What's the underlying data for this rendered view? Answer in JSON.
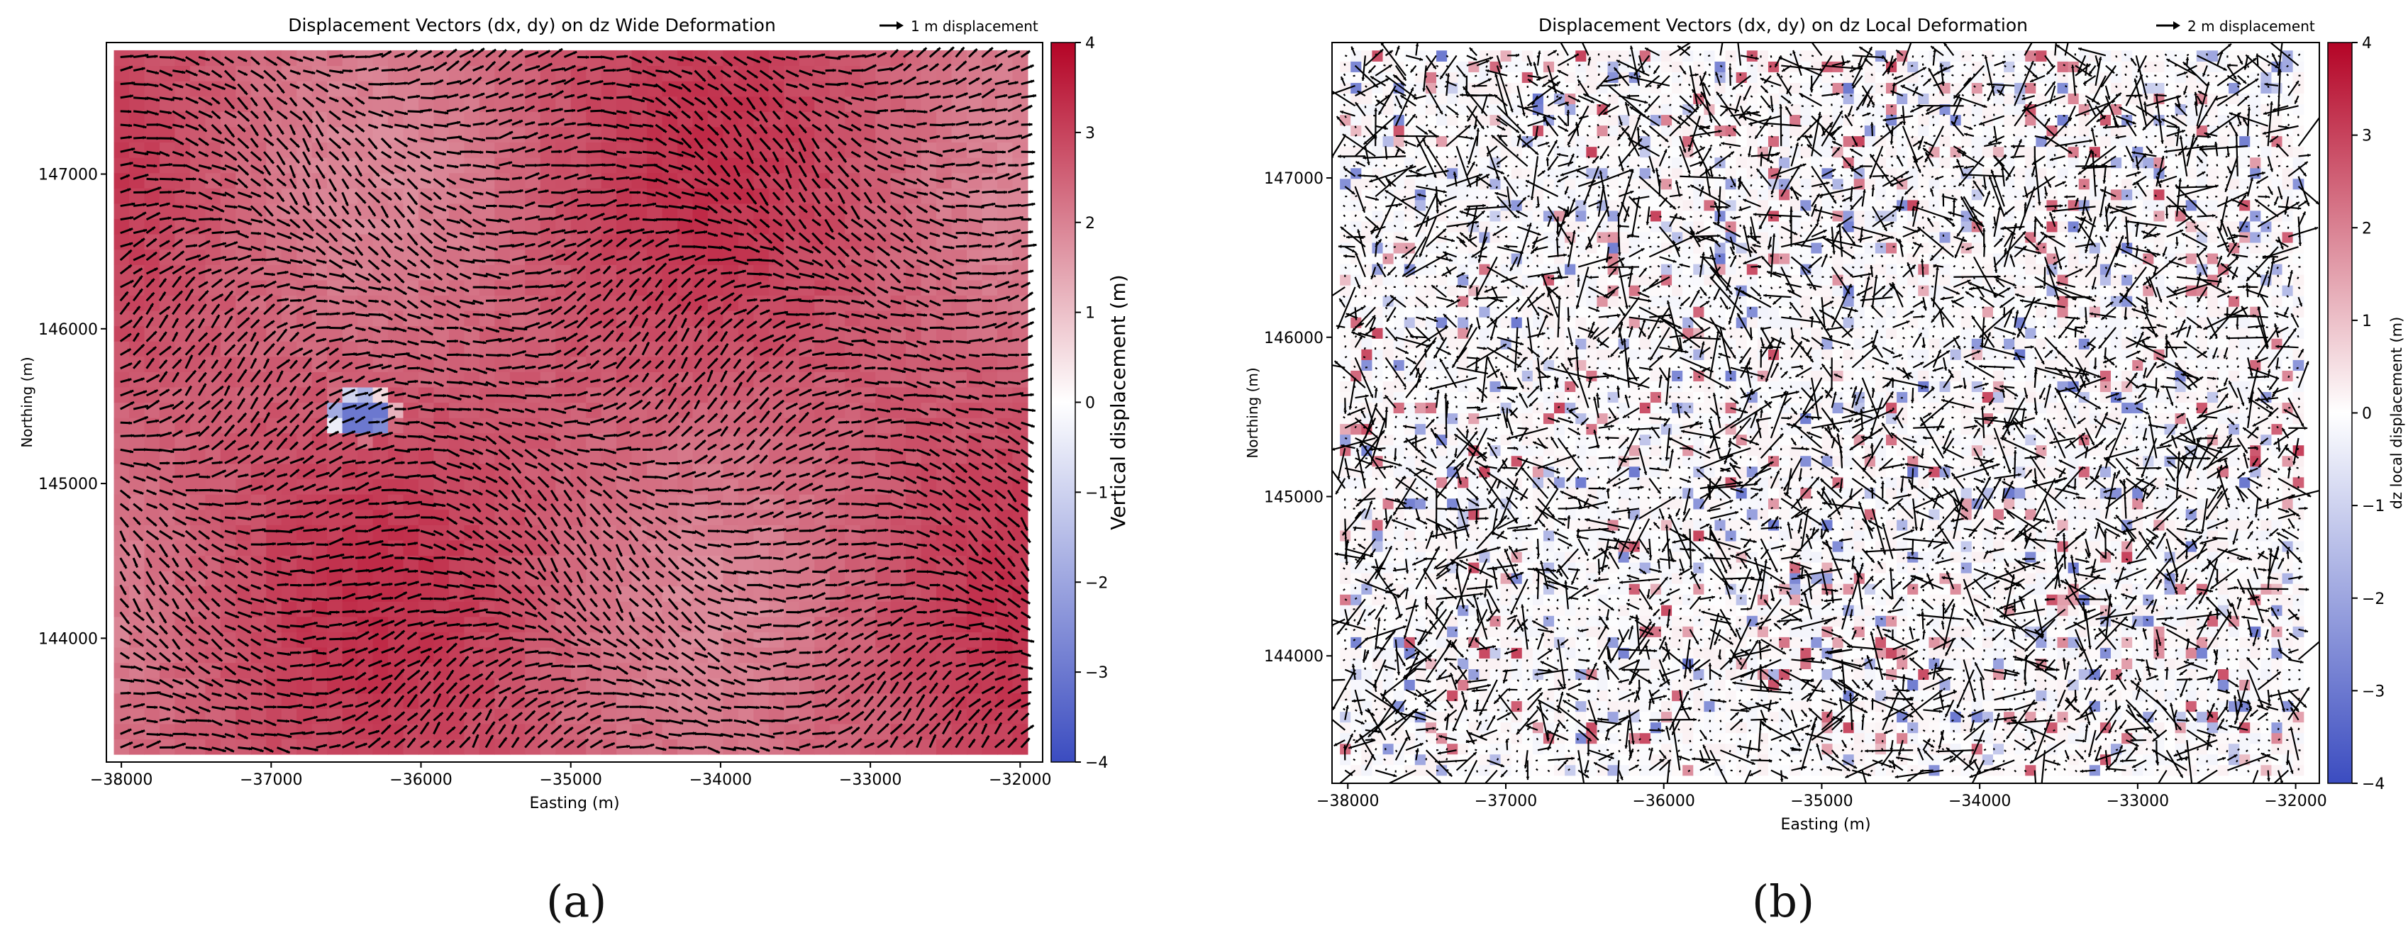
{
  "chart_data": [
    {
      "type": "heatmap",
      "subtype": "quiver-on-heatmap",
      "panel_label": "(a)",
      "title": "Displacement Vectors (dx, dy) on dz Wide Deformation",
      "quiver_key": "1 m displacement",
      "xlabel": "Easting (m)",
      "ylabel": "Northing (m)",
      "xlim": [
        -38100,
        -31850
      ],
      "ylim": [
        143200,
        147850
      ],
      "xticks": [
        -38000,
        -37000,
        -36000,
        -35000,
        -34000,
        -33000,
        -32000
      ],
      "yticks": [
        144000,
        145000,
        146000,
        147000
      ],
      "colorbar": {
        "label": "Vertical displacement (m)",
        "range": [
          -4,
          4
        ],
        "ticks": [
          4,
          3,
          2,
          1,
          0,
          -1,
          -2,
          -3,
          -4
        ],
        "colormap": [
          "#3b4cc0",
          "#ffffff",
          "#b40426"
        ]
      },
      "field_description": "Mostly positive vertical displacement (~2.5 to 3.5 m) everywhere, with a small negative patch (~-3 m) near Easting -36400, Northing 145450; vectors predominantly pointing east with swirls.",
      "negative_patch": {
        "x": -36400,
        "y": 145450,
        "value": -3
      }
    },
    {
      "type": "heatmap",
      "subtype": "quiver-on-heatmap",
      "panel_label": "(b)",
      "title": "Displacement Vectors (dx, dy) on dz Local Deformation",
      "quiver_key": "2 m displacement",
      "xlabel": "Easting (m)",
      "ylabel": "Northing (m)",
      "xlim": [
        -38100,
        -31850
      ],
      "ylim": [
        143200,
        147850
      ],
      "xticks": [
        -38000,
        -37000,
        -36000,
        -35000,
        -34000,
        -33000,
        -32000
      ],
      "yticks": [
        144000,
        145000,
        146000,
        147000
      ],
      "colorbar": {
        "label": "dz local displacement (m)",
        "range": [
          -4,
          4
        ],
        "ticks": [
          4,
          3,
          2,
          1,
          0,
          -1,
          -2,
          -3,
          -4
        ],
        "colormap": [
          "#3b4cc0",
          "#ffffff",
          "#b40426"
        ]
      },
      "field_description": "Near-zero local displacement with scattered small positive (red) and negative (blue) patches; dense, randomly oriented displacement vectors."
    }
  ]
}
